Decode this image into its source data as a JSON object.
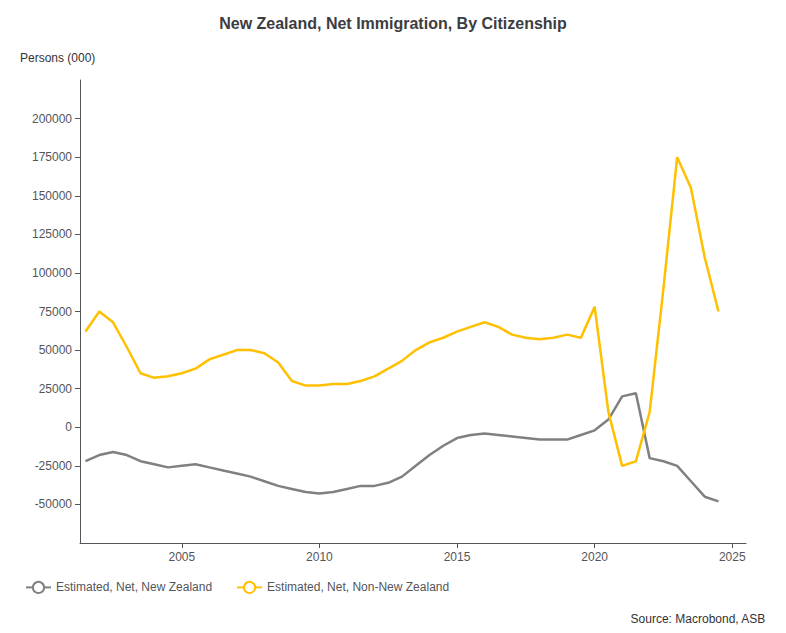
{
  "chart_data": {
    "type": "line",
    "title": "New Zealand, Net Immigration, By Citizenship",
    "ylabel": "Persons (000)",
    "annotations": [
      "Source: Macrobond, ASB"
    ],
    "x": [
      2001.5,
      2002.0,
      2002.5,
      2003.0,
      2003.5,
      2004.0,
      2004.5,
      2005.0,
      2005.5,
      2006.0,
      2006.5,
      2007.0,
      2007.5,
      2008.0,
      2008.5,
      2009.0,
      2009.5,
      2010.0,
      2010.5,
      2011.0,
      2011.5,
      2012.0,
      2012.5,
      2013.0,
      2013.5,
      2014.0,
      2014.5,
      2015.0,
      2015.5,
      2016.0,
      2016.5,
      2017.0,
      2017.5,
      2018.0,
      2018.5,
      2019.0,
      2019.5,
      2020.0,
      2020.5,
      2021.0,
      2021.5,
      2022.0,
      2022.5,
      2023.0,
      2023.5,
      2024.0,
      2024.5
    ],
    "series": [
      {
        "name": "Estimated, Net, New Zealand",
        "color": "#808080",
        "values": [
          -22000,
          -18000,
          -16000,
          -18000,
          -22000,
          -24000,
          -26000,
          -25000,
          -24000,
          -26000,
          -28000,
          -30000,
          -32000,
          -35000,
          -38000,
          -40000,
          -42000,
          -43000,
          -42000,
          -40000,
          -38000,
          -38000,
          -36000,
          -32000,
          -25000,
          -18000,
          -12000,
          -7000,
          -5000,
          -4000,
          -5000,
          -6000,
          -7000,
          -8000,
          -8000,
          -8000,
          -5000,
          -2000,
          5000,
          20000,
          22000,
          -20000,
          -22000,
          -25000,
          -35000,
          -45000,
          -48000
        ]
      },
      {
        "name": "Estimated, Net, Non-New Zealand",
        "color": "#FFC000",
        "values": [
          62000,
          75000,
          68000,
          52000,
          35000,
          32000,
          33000,
          35000,
          38000,
          44000,
          47000,
          50000,
          50000,
          48000,
          42000,
          30000,
          27000,
          27000,
          28000,
          28000,
          30000,
          33000,
          38000,
          43000,
          50000,
          55000,
          58000,
          62000,
          65000,
          68000,
          65000,
          60000,
          58000,
          57000,
          58000,
          60000,
          58000,
          78000,
          10000,
          -25000,
          -22000,
          10000,
          90000,
          175000,
          155000,
          110000,
          75000
        ]
      }
    ],
    "xlim": [
      2001.3,
      2025.5
    ],
    "xticks": [
      2005,
      2010,
      2015,
      2020,
      2025
    ],
    "ylim": [
      -75000,
      225000
    ],
    "yticks": [
      -50000,
      -25000,
      0,
      25000,
      50000,
      75000,
      100000,
      125000,
      150000,
      175000,
      200000
    ],
    "grid": false,
    "legend": "bottom"
  }
}
